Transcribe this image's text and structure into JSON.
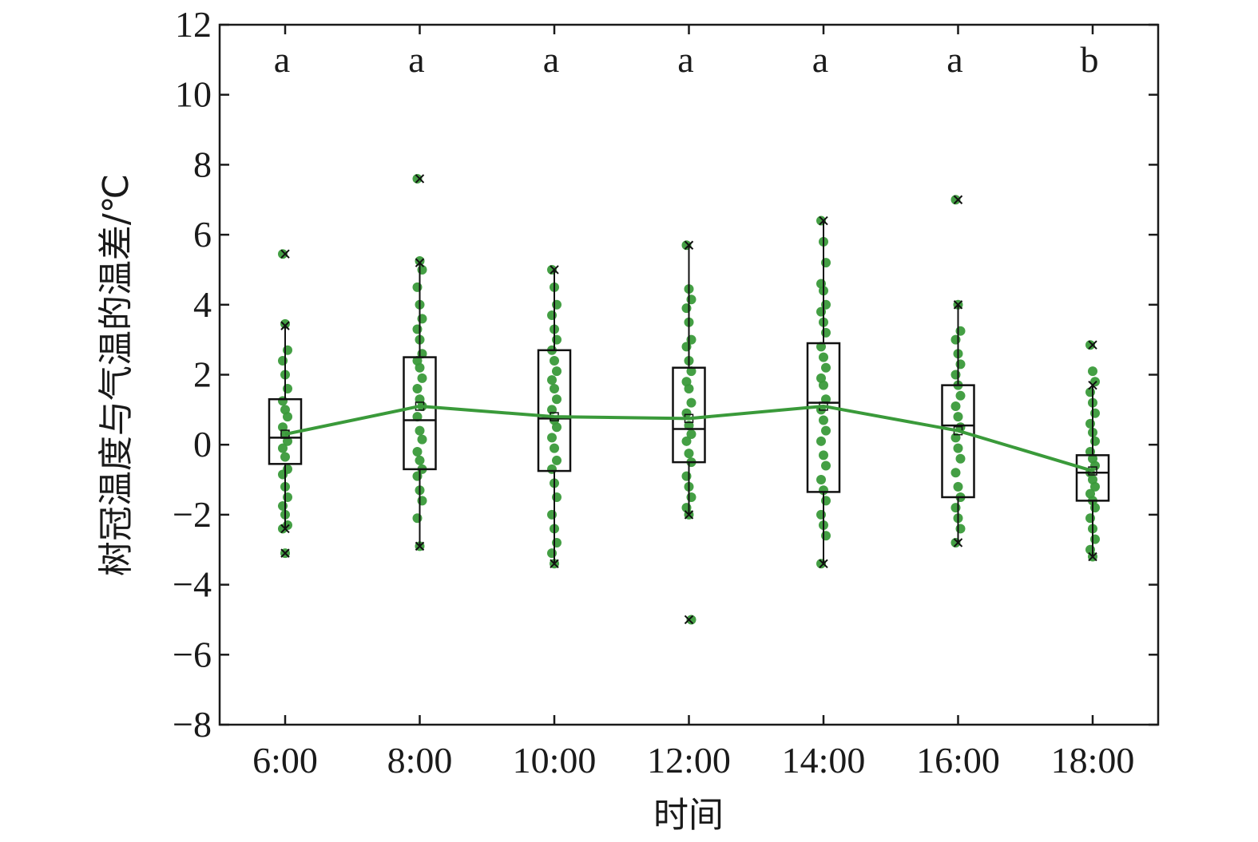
{
  "chart_data": {
    "type": "box",
    "xlabel": "时间",
    "ylabel": "树冠温度与气温的温差/℃",
    "ylim": [
      -8,
      12
    ],
    "yticks": [
      -8,
      -6,
      -4,
      -2,
      0,
      2,
      4,
      6,
      8,
      10,
      12
    ],
    "ytick_labels": [
      "−8",
      "−6",
      "−4",
      "−2",
      "0",
      "2",
      "4",
      "6",
      "8",
      "10",
      "12"
    ],
    "categories": [
      "6:00",
      "8:00",
      "10:00",
      "12:00",
      "14:00",
      "16:00",
      "18:00"
    ],
    "significance_letters": [
      "a",
      "a",
      "a",
      "a",
      "a",
      "a",
      "b"
    ],
    "colors": {
      "points": "#3a9a3a",
      "mean_line": "#3a9a3a",
      "box": "#111111"
    },
    "boxes": [
      {
        "label": "6:00",
        "q1": -0.55,
        "median": 0.2,
        "q3": 1.3,
        "whisker_low": -2.4,
        "whisker_high": 3.4,
        "mean": 0.3,
        "outliers": [
          5.45,
          -3.1
        ]
      },
      {
        "label": "8:00",
        "q1": -0.7,
        "median": 0.7,
        "q3": 2.5,
        "whisker_low": -2.9,
        "whisker_high": 5.2,
        "mean": 1.1,
        "outliers": [
          7.6
        ]
      },
      {
        "label": "10:00",
        "q1": -0.75,
        "median": 0.75,
        "q3": 2.7,
        "whisker_low": -3.4,
        "whisker_high": 5.0,
        "mean": 0.8,
        "outliers": []
      },
      {
        "label": "12:00",
        "q1": -0.5,
        "median": 0.45,
        "q3": 2.2,
        "whisker_low": -2.0,
        "whisker_high": 5.7,
        "mean": 0.75,
        "outliers": [
          -5.0
        ]
      },
      {
        "label": "14:00",
        "q1": -1.35,
        "median": 1.2,
        "q3": 2.9,
        "whisker_low": -3.4,
        "whisker_high": 6.4,
        "mean": 1.1,
        "outliers": []
      },
      {
        "label": "16:00",
        "q1": -1.5,
        "median": 0.55,
        "q3": 1.7,
        "whisker_low": -2.8,
        "whisker_high": 4.0,
        "mean": 0.4,
        "outliers": [
          7.0
        ]
      },
      {
        "label": "18:00",
        "q1": -1.6,
        "median": -0.8,
        "q3": -0.3,
        "whisker_low": -3.2,
        "whisker_high": 1.7,
        "mean": -0.75,
        "outliers": [
          2.85
        ]
      }
    ],
    "points": [
      [
        5.45,
        3.45,
        2.7,
        2.4,
        2.0,
        1.6,
        1.25,
        1.0,
        0.8,
        0.5,
        0.3,
        0.1,
        -0.1,
        -0.35,
        -0.7,
        -0.85,
        -1.2,
        -1.5,
        -1.75,
        -2.0,
        -2.3,
        -2.4,
        -3.1
      ],
      [
        7.6,
        5.25,
        5.0,
        4.5,
        4.0,
        3.6,
        3.3,
        3.0,
        2.6,
        2.4,
        2.2,
        1.9,
        1.6,
        1.3,
        1.1,
        0.8,
        0.4,
        0.15,
        -0.2,
        -0.45,
        -0.7,
        -0.9,
        -1.3,
        -1.6,
        -2.1,
        -2.9
      ],
      [
        5.0,
        4.5,
        4.0,
        3.7,
        3.3,
        3.0,
        2.7,
        2.4,
        2.1,
        1.85,
        1.6,
        1.3,
        1.0,
        0.7,
        0.5,
        0.2,
        -0.1,
        -0.45,
        -0.7,
        -1.1,
        -1.5,
        -2.0,
        -2.4,
        -2.8,
        -3.1,
        -3.4
      ],
      [
        5.7,
        4.45,
        4.15,
        3.9,
        3.5,
        3.0,
        2.8,
        2.4,
        2.1,
        1.8,
        1.6,
        1.2,
        0.9,
        0.55,
        0.3,
        0.1,
        -0.25,
        -0.5,
        -0.9,
        -1.2,
        -1.5,
        -1.8,
        -2.0,
        -5.0
      ],
      [
        6.4,
        5.8,
        5.2,
        4.6,
        4.4,
        4.0,
        3.8,
        3.5,
        3.2,
        2.8,
        2.5,
        2.2,
        1.9,
        1.7,
        1.3,
        1.0,
        0.7,
        0.4,
        0.1,
        -0.3,
        -0.6,
        -1.0,
        -1.3,
        -1.6,
        -2.0,
        -2.3,
        -2.6,
        -3.4
      ],
      [
        7.0,
        4.0,
        3.25,
        3.0,
        2.6,
        2.3,
        2.0,
        1.7,
        1.4,
        1.1,
        0.8,
        0.5,
        0.2,
        -0.1,
        -0.4,
        -0.8,
        -1.2,
        -1.5,
        -1.8,
        -2.1,
        -2.4,
        -2.8
      ],
      [
        2.85,
        2.1,
        1.8,
        1.5,
        1.2,
        0.9,
        0.6,
        0.35,
        0.1,
        -0.2,
        -0.4,
        -0.6,
        -0.8,
        -1.0,
        -1.2,
        -1.4,
        -1.6,
        -1.8,
        -2.1,
        -2.4,
        -2.7,
        -3.0,
        -3.2
      ]
    ]
  }
}
